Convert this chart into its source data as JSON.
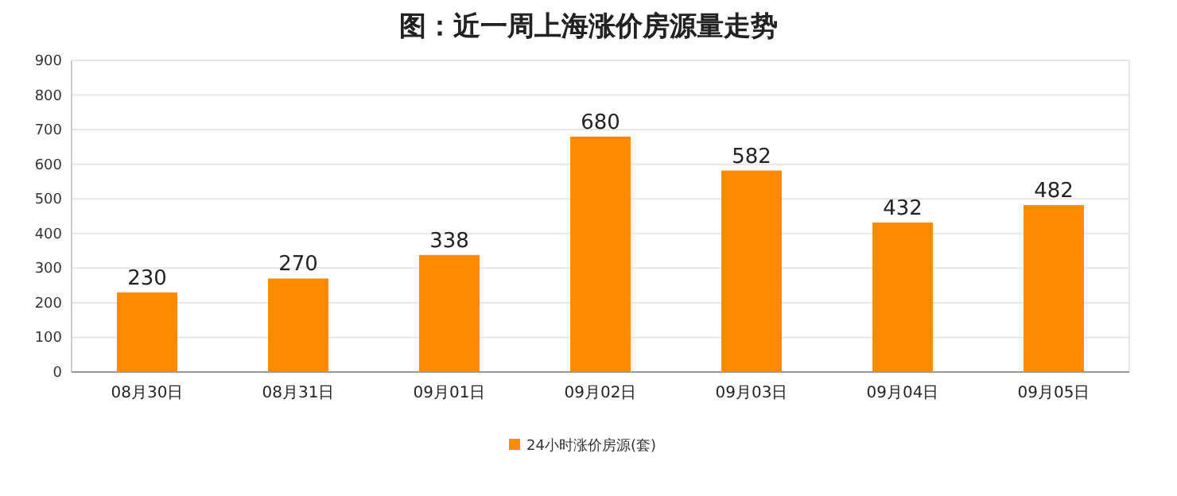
{
  "chart_data": {
    "type": "bar",
    "title": "图：近一周上海涨价房源量走势",
    "categories": [
      "08月30日",
      "08月31日",
      "09月01日",
      "09月02日",
      "09月03日",
      "09月04日",
      "09月05日"
    ],
    "series": [
      {
        "name": "24小时涨价房源(套)",
        "color": "#ff8a00",
        "values": [
          230,
          270,
          338,
          680,
          582,
          432,
          482
        ]
      }
    ],
    "ylim": [
      0,
      900
    ],
    "yticks": [
      0,
      100,
      200,
      300,
      400,
      500,
      600,
      700,
      800,
      900
    ],
    "grid": "y",
    "data_labels": true,
    "legend": "bottom"
  }
}
